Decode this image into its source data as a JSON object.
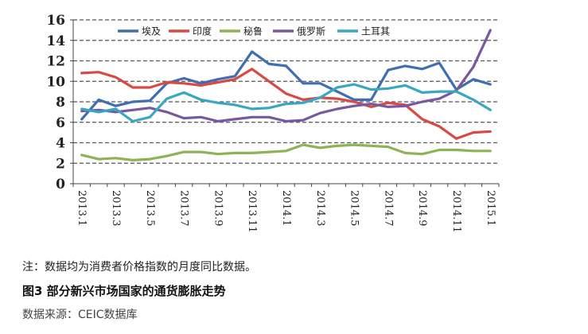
{
  "chart_data": {
    "type": "line",
    "ylim": [
      0,
      16
    ],
    "yticks": [
      0,
      2,
      4,
      6,
      8,
      10,
      12,
      14,
      16
    ],
    "xtick_labels": [
      "2013.1",
      "2013.3",
      "2013.5",
      "2013.7",
      "2013.9",
      "2013.11",
      "2014.1",
      "2014.3",
      "2014.5",
      "2014.7",
      "2014.9",
      "2014.11",
      "2015.1"
    ],
    "grid": "horizontal-dashed",
    "legend_position": "top",
    "series": [
      {
        "name": "埃及",
        "color": "#3f6fb1",
        "values": [
          6.3,
          8.2,
          7.6,
          8.0,
          8.1,
          9.8,
          10.3,
          9.8,
          10.2,
          10.5,
          12.9,
          11.7,
          11.5,
          9.8,
          9.8,
          9.0,
          8.2,
          8.2,
          11.1,
          11.5,
          11.2,
          11.8,
          9.2,
          10.2,
          9.7
        ]
      },
      {
        "name": "印度",
        "color": "#d84a43",
        "values": [
          10.8,
          10.9,
          10.4,
          9.4,
          9.4,
          9.9,
          9.8,
          9.6,
          9.9,
          10.2,
          11.2,
          10.0,
          8.8,
          8.2,
          8.4,
          8.3,
          8.0,
          7.5,
          7.9,
          7.7,
          6.3,
          5.6,
          4.4,
          5.0,
          5.1
        ]
      },
      {
        "name": "秘鲁",
        "color": "#8cb455",
        "values": [
          2.8,
          2.4,
          2.5,
          2.3,
          2.4,
          2.7,
          3.1,
          3.1,
          2.9,
          3.0,
          3.0,
          3.1,
          3.2,
          3.8,
          3.5,
          3.7,
          3.8,
          3.7,
          3.6,
          3.0,
          2.9,
          3.3,
          3.3,
          3.2,
          3.2
        ]
      },
      {
        "name": "俄罗斯",
        "color": "#7a58a1",
        "values": [
          7.1,
          7.2,
          7.0,
          7.2,
          7.4,
          7.0,
          6.4,
          6.5,
          6.1,
          6.3,
          6.5,
          6.5,
          6.1,
          6.2,
          6.9,
          7.3,
          7.6,
          7.8,
          7.5,
          7.6,
          8.0,
          8.3,
          9.1,
          11.4,
          15.0
        ]
      },
      {
        "name": "土耳其",
        "color": "#3aa7c2",
        "values": [
          7.3,
          7.0,
          7.3,
          6.1,
          6.5,
          8.3,
          8.9,
          8.2,
          7.9,
          7.7,
          7.3,
          7.4,
          7.8,
          7.9,
          8.4,
          9.4,
          9.7,
          9.2,
          9.3,
          9.6,
          8.9,
          9.0,
          9.0,
          8.2,
          7.2
        ]
      }
    ]
  },
  "note": "注：数据均为消费者价格指数的月度同比数据。",
  "figure_title": "图3 部分新兴市场国家的通货膨胀走势",
  "source": "数据来源：CEIC数据库"
}
